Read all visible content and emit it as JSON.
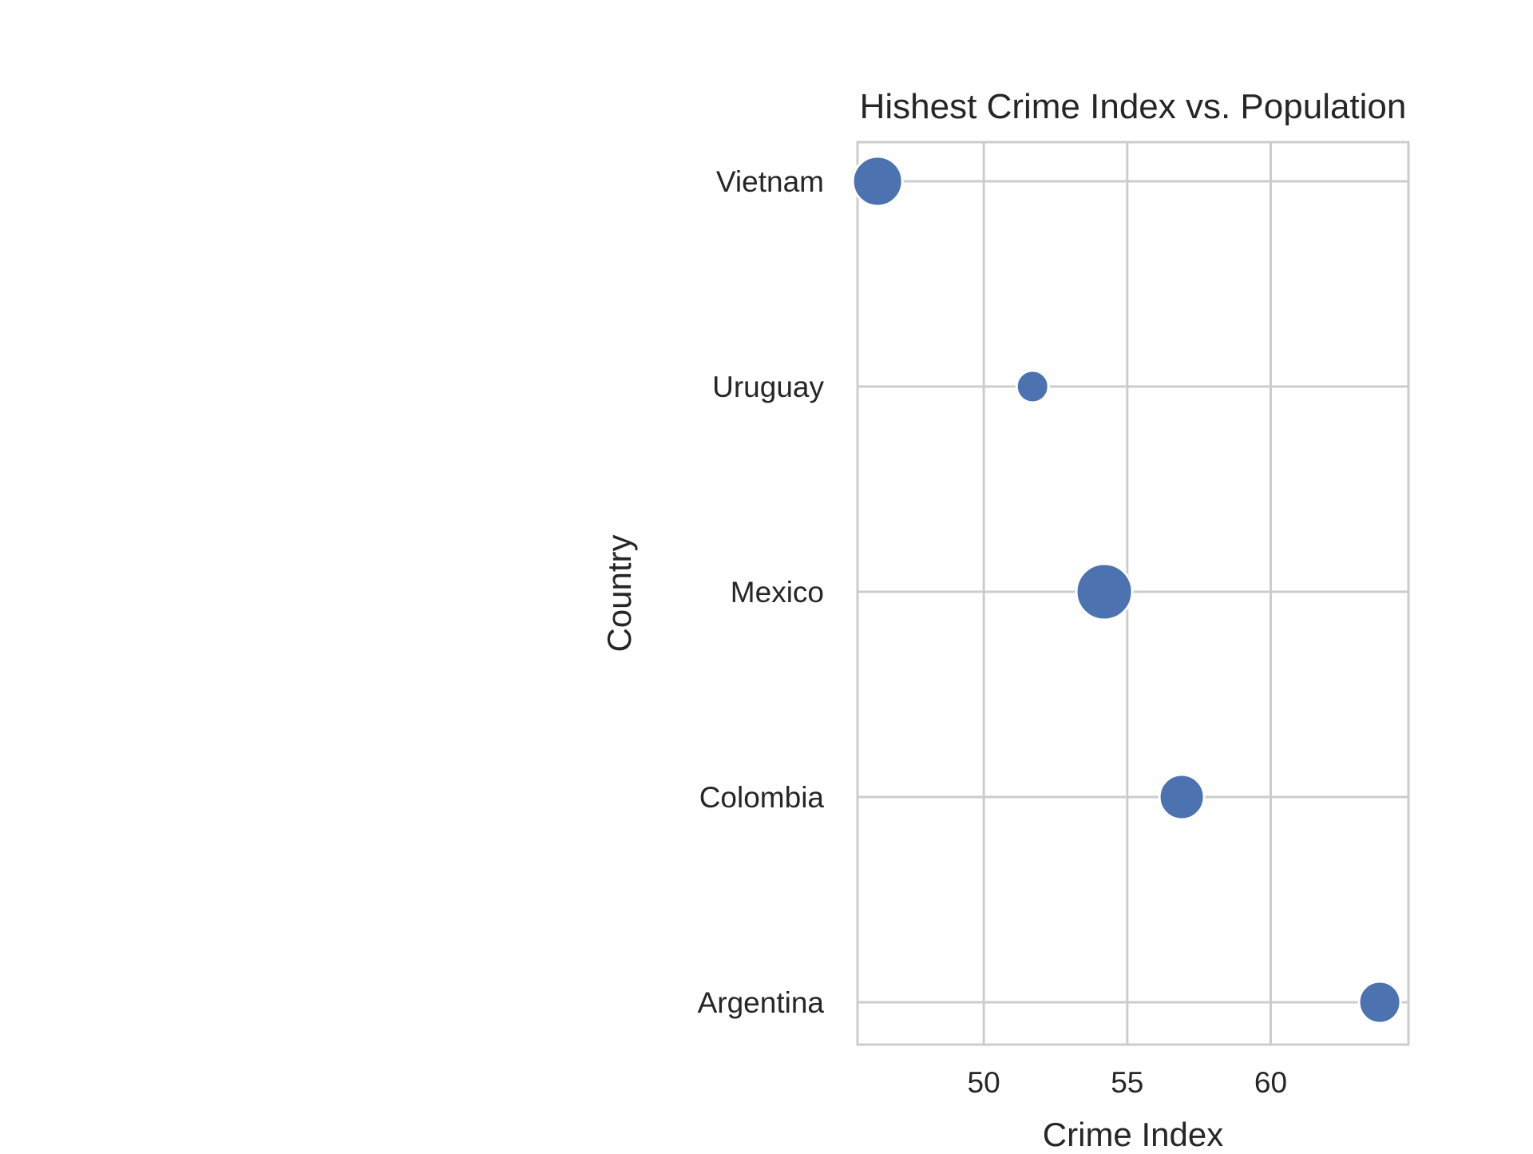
{
  "chart_data": {
    "type": "scatter",
    "title": "Hishest Crime Index vs. Population",
    "xlabel": "Crime Index",
    "ylabel": "Country",
    "categories": [
      "Vietnam",
      "Uruguay",
      "Mexico",
      "Colombia",
      "Argentina"
    ],
    "series": [
      {
        "x": [
          46.3,
          51.7,
          54.2,
          56.9,
          63.8
        ],
        "size_rank": [
          4,
          1,
          5,
          3,
          2
        ]
      }
    ],
    "xlim": [
      45.6,
      64.8
    ],
    "xticks": [
      50,
      55,
      60
    ],
    "grid": true,
    "legend": "none",
    "colors": {
      "marker": "#4c72b0",
      "marker_edge": "#ffffff",
      "grid": "#cccccc",
      "spine": "#cccccc",
      "text": "#262626"
    }
  }
}
